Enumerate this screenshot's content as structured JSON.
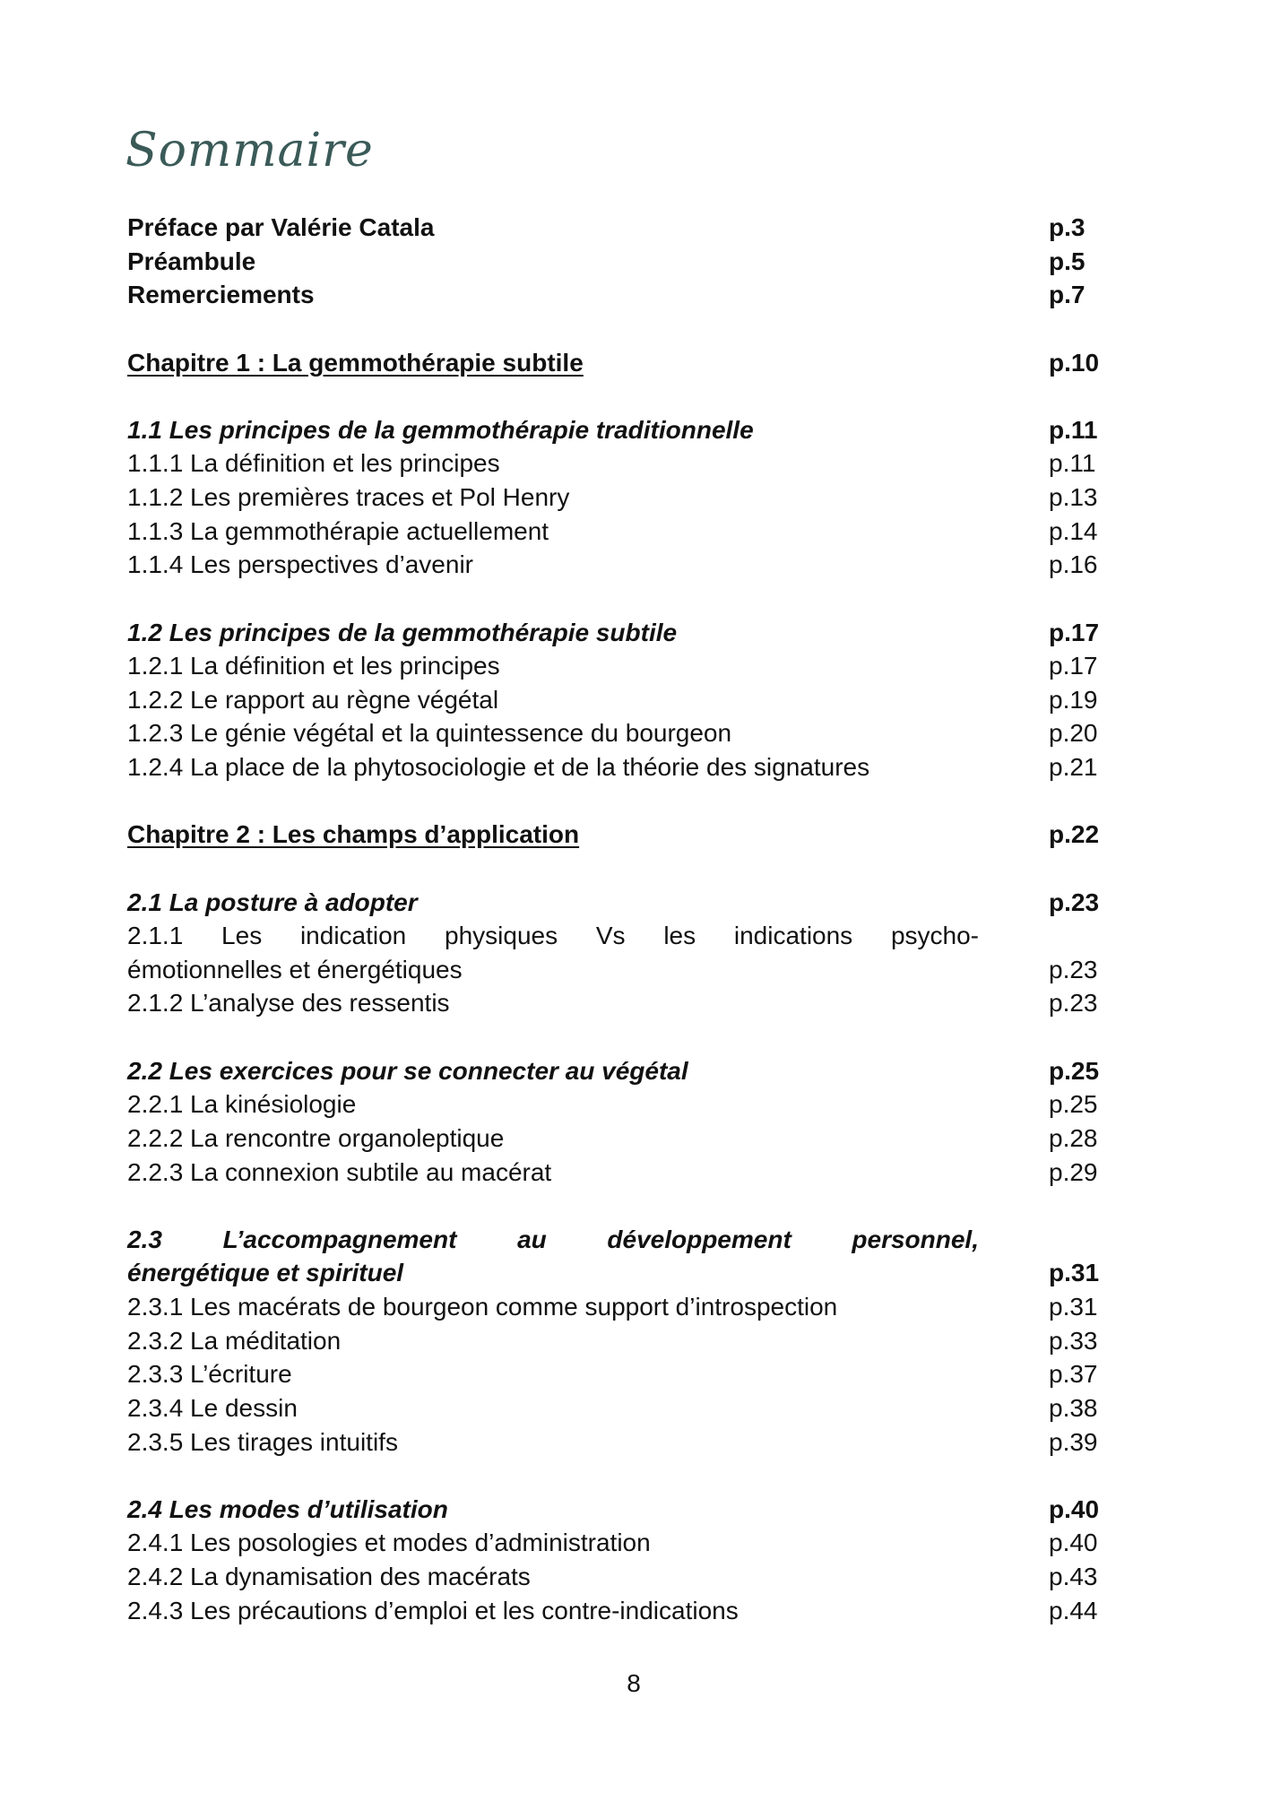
{
  "title": "Sommaire",
  "entries": [
    {
      "label": "Préface par Valérie Catala",
      "page": "p.3",
      "kind": "front"
    },
    {
      "label": "Préambule",
      "page": "p.5",
      "kind": "front"
    },
    {
      "label": "Remerciements",
      "page": "p.7",
      "kind": "front"
    },
    {
      "kind": "blank"
    },
    {
      "label": "Chapitre 1 : La gemmothérapie subtile",
      "page": "p.10",
      "kind": "chapter"
    },
    {
      "kind": "blank"
    },
    {
      "label": "1.1 Les principes de la gemmothérapie traditionnelle",
      "page": "p.11",
      "kind": "section"
    },
    {
      "label": "1.1.1 La définition et les principes",
      "page": "p.11",
      "kind": "sub"
    },
    {
      "label": "1.1.2 Les premières traces et Pol Henry",
      "page": "p.13",
      "kind": "sub"
    },
    {
      "label": "1.1.3 La gemmothérapie actuellement",
      "page": "p.14",
      "kind": "sub"
    },
    {
      "label": "1.1.4 Les perspectives d’avenir",
      "page": "p.16",
      "kind": "sub"
    },
    {
      "kind": "blank"
    },
    {
      "label": "1.2 Les principes de la gemmothérapie subtile",
      "page": "p.17",
      "kind": "section"
    },
    {
      "label": "1.2.1 La définition et les principes",
      "page": "p.17",
      "kind": "sub"
    },
    {
      "label": "1.2.2 Le rapport au règne végétal",
      "page": "p.19",
      "kind": "sub"
    },
    {
      "label": "1.2.3 Le génie végétal et la quintessence du bourgeon",
      "page": "p.20",
      "kind": "sub"
    },
    {
      "label": "1.2.4 La place de la phytosociologie et de la théorie des signatures",
      "page": "p.21",
      "kind": "sub"
    },
    {
      "kind": "blank"
    },
    {
      "label": "Chapitre 2 : Les champs d’application",
      "page": "p.22",
      "kind": "chapter"
    },
    {
      "kind": "blank"
    },
    {
      "label": "2.1 La posture à adopter",
      "page": "p.23",
      "kind": "section"
    },
    {
      "label": "2.1.1 Les indication physiques Vs les indications psycho-",
      "kind": "sub-justify"
    },
    {
      "label": "émotionnelles et énergétiques",
      "page": "p.23",
      "kind": "sub"
    },
    {
      "label": "2.1.2 L’analyse des ressentis",
      "page": "p.23",
      "kind": "sub"
    },
    {
      "kind": "blank"
    },
    {
      "label": "2.2 Les exercices pour se connecter au végétal",
      "page": "p.25",
      "kind": "section"
    },
    {
      "label": "2.2.1 La kinésiologie",
      "page": "p.25",
      "kind": "sub"
    },
    {
      "label": "2.2.2 La rencontre organoleptique",
      "page": "p.28",
      "kind": "sub"
    },
    {
      "label": "2.2.3 La connexion subtile au macérat",
      "page": "p.29",
      "kind": "sub"
    },
    {
      "kind": "blank"
    },
    {
      "label": "2.3 L’accompagnement au développement personnel,",
      "kind": "section-justify"
    },
    {
      "label": "énergétique et spirituel",
      "page": "p.31",
      "kind": "section"
    },
    {
      "label": "2.3.1 Les macérats de bourgeon comme support d’introspection",
      "page": "p.31",
      "kind": "sub"
    },
    {
      "label": "2.3.2 La méditation",
      "page": "p.33",
      "kind": "sub"
    },
    {
      "label": "2.3.3 L’écriture",
      "page": "p.37",
      "kind": "sub"
    },
    {
      "label": "2.3.4 Le dessin",
      "page": "p.38",
      "kind": "sub"
    },
    {
      "label": "2.3.5 Les tirages intuitifs",
      "page": "p.39",
      "kind": "sub"
    },
    {
      "kind": "blank"
    },
    {
      "label": "2.4 Les modes d’utilisation",
      "page": "p.40",
      "kind": "section"
    },
    {
      "label": "2.4.1 Les posologies et modes d’administration",
      "page": "p.40",
      "kind": "sub"
    },
    {
      "label": "2.4.2 La dynamisation des macérats",
      "page": "p.43",
      "kind": "sub"
    },
    {
      "label": "2.4.3 Les précautions d’emploi et les contre-indications",
      "page": "p.44",
      "kind": "sub"
    }
  ],
  "page_number": "8",
  "colors": {
    "title": "#3a5a58",
    "text": "#111111"
  }
}
